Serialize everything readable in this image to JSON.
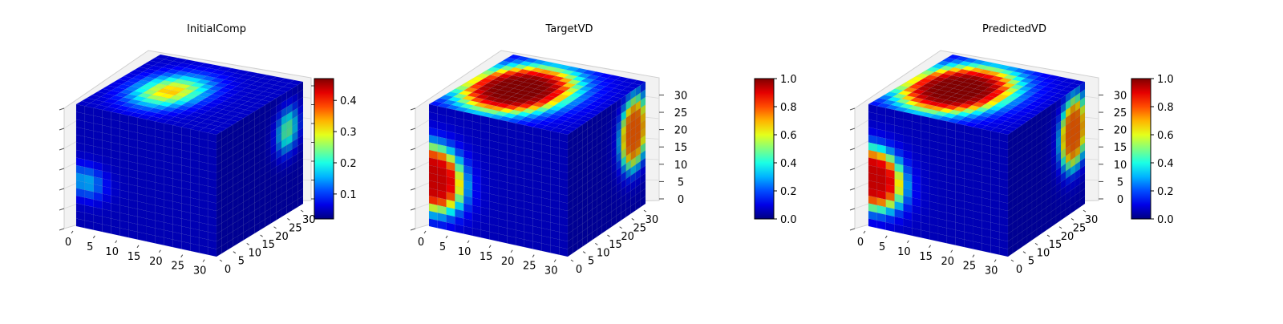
{
  "chart_data": [
    {
      "type": "3d-voxel",
      "title": "InitialComp",
      "axes": {
        "x_ticks": [
          0,
          5,
          10,
          15,
          20,
          25,
          30
        ],
        "y_ticks": [
          0,
          5,
          10,
          15,
          20,
          25,
          30
        ],
        "z_ticks": []
      },
      "colormap": "jet",
      "colorbar": {
        "vmin": 0.02,
        "vmax": 0.47,
        "ticks": [
          0.1,
          0.2,
          0.3,
          0.4
        ],
        "tick_labels": [
          "0.1",
          "0.2",
          "0.3",
          "0.4"
        ]
      },
      "blobs": [
        {
          "face": "top",
          "u": 0.48,
          "v": 0.38,
          "ru": 0.34,
          "rv": 0.26,
          "value": 0.33
        },
        {
          "face": "right",
          "u": 0.82,
          "v": 0.32,
          "ru": 0.16,
          "rv": 0.22,
          "value": 0.3
        },
        {
          "face": "front",
          "u": 0.07,
          "v": 0.62,
          "ru": 0.17,
          "rv": 0.17,
          "value": 0.17
        }
      ]
    },
    {
      "type": "3d-voxel",
      "title": "TargetVD",
      "axes": {
        "x_ticks": [
          0,
          5,
          10,
          15,
          20,
          25,
          30
        ],
        "y_ticks": [
          0,
          5,
          10,
          15,
          20,
          25,
          30
        ],
        "z_ticks": [
          0,
          5,
          10,
          15,
          20,
          25,
          30
        ]
      },
      "colormap": "jet",
      "colorbar": {
        "vmin": 0,
        "vmax": 1,
        "ticks": [
          0,
          0.2,
          0.4,
          0.6,
          0.8,
          1
        ],
        "tick_labels": [
          "0.0",
          "0.2",
          "0.4",
          "0.6",
          "0.8",
          "1.0"
        ]
      },
      "blobs": [
        {
          "face": "top",
          "u": 0.5,
          "v": 0.35,
          "ru": 0.4,
          "rv": 0.34,
          "value": 1.0
        },
        {
          "face": "right",
          "u": 0.85,
          "v": 0.35,
          "ru": 0.17,
          "rv": 0.28,
          "value": 1.0
        },
        {
          "face": "front",
          "u": 0.04,
          "v": 0.6,
          "ru": 0.2,
          "rv": 0.26,
          "value": 1.0
        }
      ]
    },
    {
      "type": "3d-voxel",
      "title": "PredictedVD",
      "axes": {
        "x_ticks": [
          0,
          5,
          10,
          15,
          20,
          25,
          30
        ],
        "y_ticks": [
          0,
          5,
          10,
          15,
          20,
          25,
          30
        ],
        "z_ticks": [
          0,
          5,
          10,
          15,
          20,
          25,
          30
        ]
      },
      "colormap": "jet",
      "colorbar": {
        "vmin": 0,
        "vmax": 1,
        "ticks": [
          0,
          0.2,
          0.4,
          0.6,
          0.8,
          1
        ],
        "tick_labels": [
          "0.0",
          "0.2",
          "0.4",
          "0.6",
          "0.8",
          "1.0"
        ]
      },
      "blobs": [
        {
          "face": "top",
          "u": 0.5,
          "v": 0.35,
          "ru": 0.4,
          "rv": 0.34,
          "value": 1.0
        },
        {
          "face": "right",
          "u": 0.85,
          "v": 0.35,
          "ru": 0.17,
          "rv": 0.28,
          "value": 1.0
        },
        {
          "face": "front",
          "u": 0.04,
          "v": 0.6,
          "ru": 0.2,
          "rv": 0.24,
          "value": 1.0
        }
      ]
    }
  ]
}
